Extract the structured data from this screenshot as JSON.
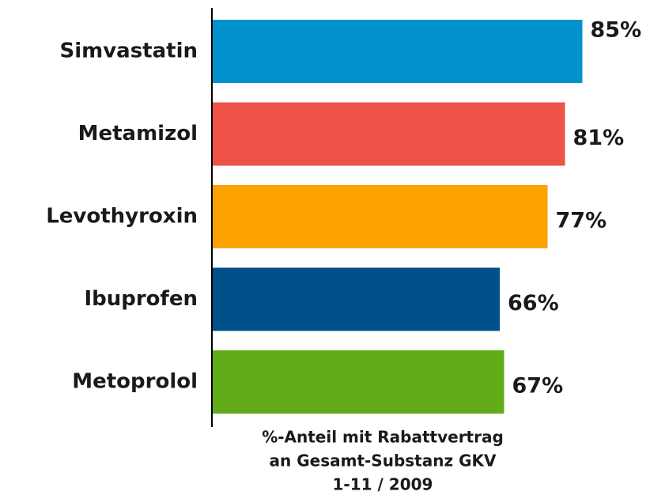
{
  "chart_data": {
    "type": "bar",
    "orientation": "horizontal",
    "categories": [
      "Simvastatin",
      "Metamizol",
      "Levothyroxin",
      "Ibuprofen",
      "Metoprolol"
    ],
    "values": [
      85,
      81,
      77,
      66,
      67
    ],
    "value_labels": [
      "85%",
      "81%",
      "77%",
      "66%",
      "67%"
    ],
    "colors": [
      "#0192cc",
      "#ee5249",
      "#fba100",
      "#005089",
      "#62ac19"
    ],
    "xlabel": [
      "%-Anteil mit Rabattvertrag",
      "an Gesamt-Substanz GKV",
      "1-11 / 2009"
    ]
  }
}
